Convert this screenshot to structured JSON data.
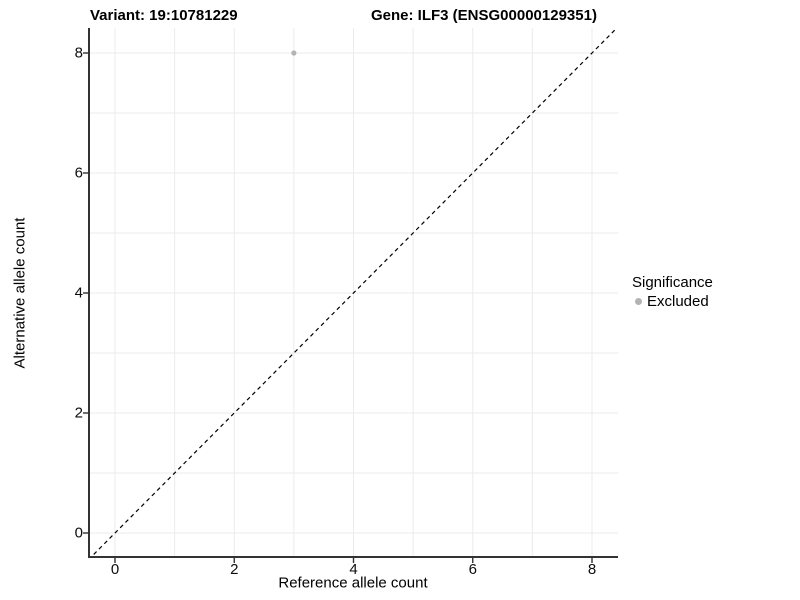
{
  "title": {
    "variant": "Variant: 19:10781229",
    "gene": "Gene: ILF3 (ENSG00000129351)"
  },
  "chart_data": {
    "type": "scatter",
    "title": "Variant: 19:10781229    Gene: ILF3 (ENSG00000129351)",
    "xlabel": "Reference allele count",
    "ylabel": "Alternative allele count",
    "xlim": [
      -0.45,
      8.45
    ],
    "ylim": [
      -0.45,
      8.45
    ],
    "x_ticks": [
      0,
      2,
      4,
      6,
      8
    ],
    "y_ticks": [
      0,
      2,
      4,
      6,
      8
    ],
    "gridlines": [
      0,
      1,
      2,
      3,
      4,
      5,
      6,
      7,
      8
    ],
    "grid": true,
    "series": [
      {
        "name": "Excluded",
        "color": "#b3b3b3",
        "points": [
          {
            "x": 3,
            "y": 8
          }
        ]
      }
    ],
    "reference_line": {
      "type": "identity",
      "equation": "y = x",
      "style": "dashed",
      "color": "#000000"
    },
    "legend": {
      "title": "Significance",
      "position": "right",
      "items": [
        {
          "label": "Excluded",
          "color": "#b3b3b3"
        }
      ]
    },
    "style": {
      "background": "#ffffff",
      "grid_color": "#ebebeb",
      "axis_color": "#333333",
      "text_color": "#000000"
    }
  }
}
